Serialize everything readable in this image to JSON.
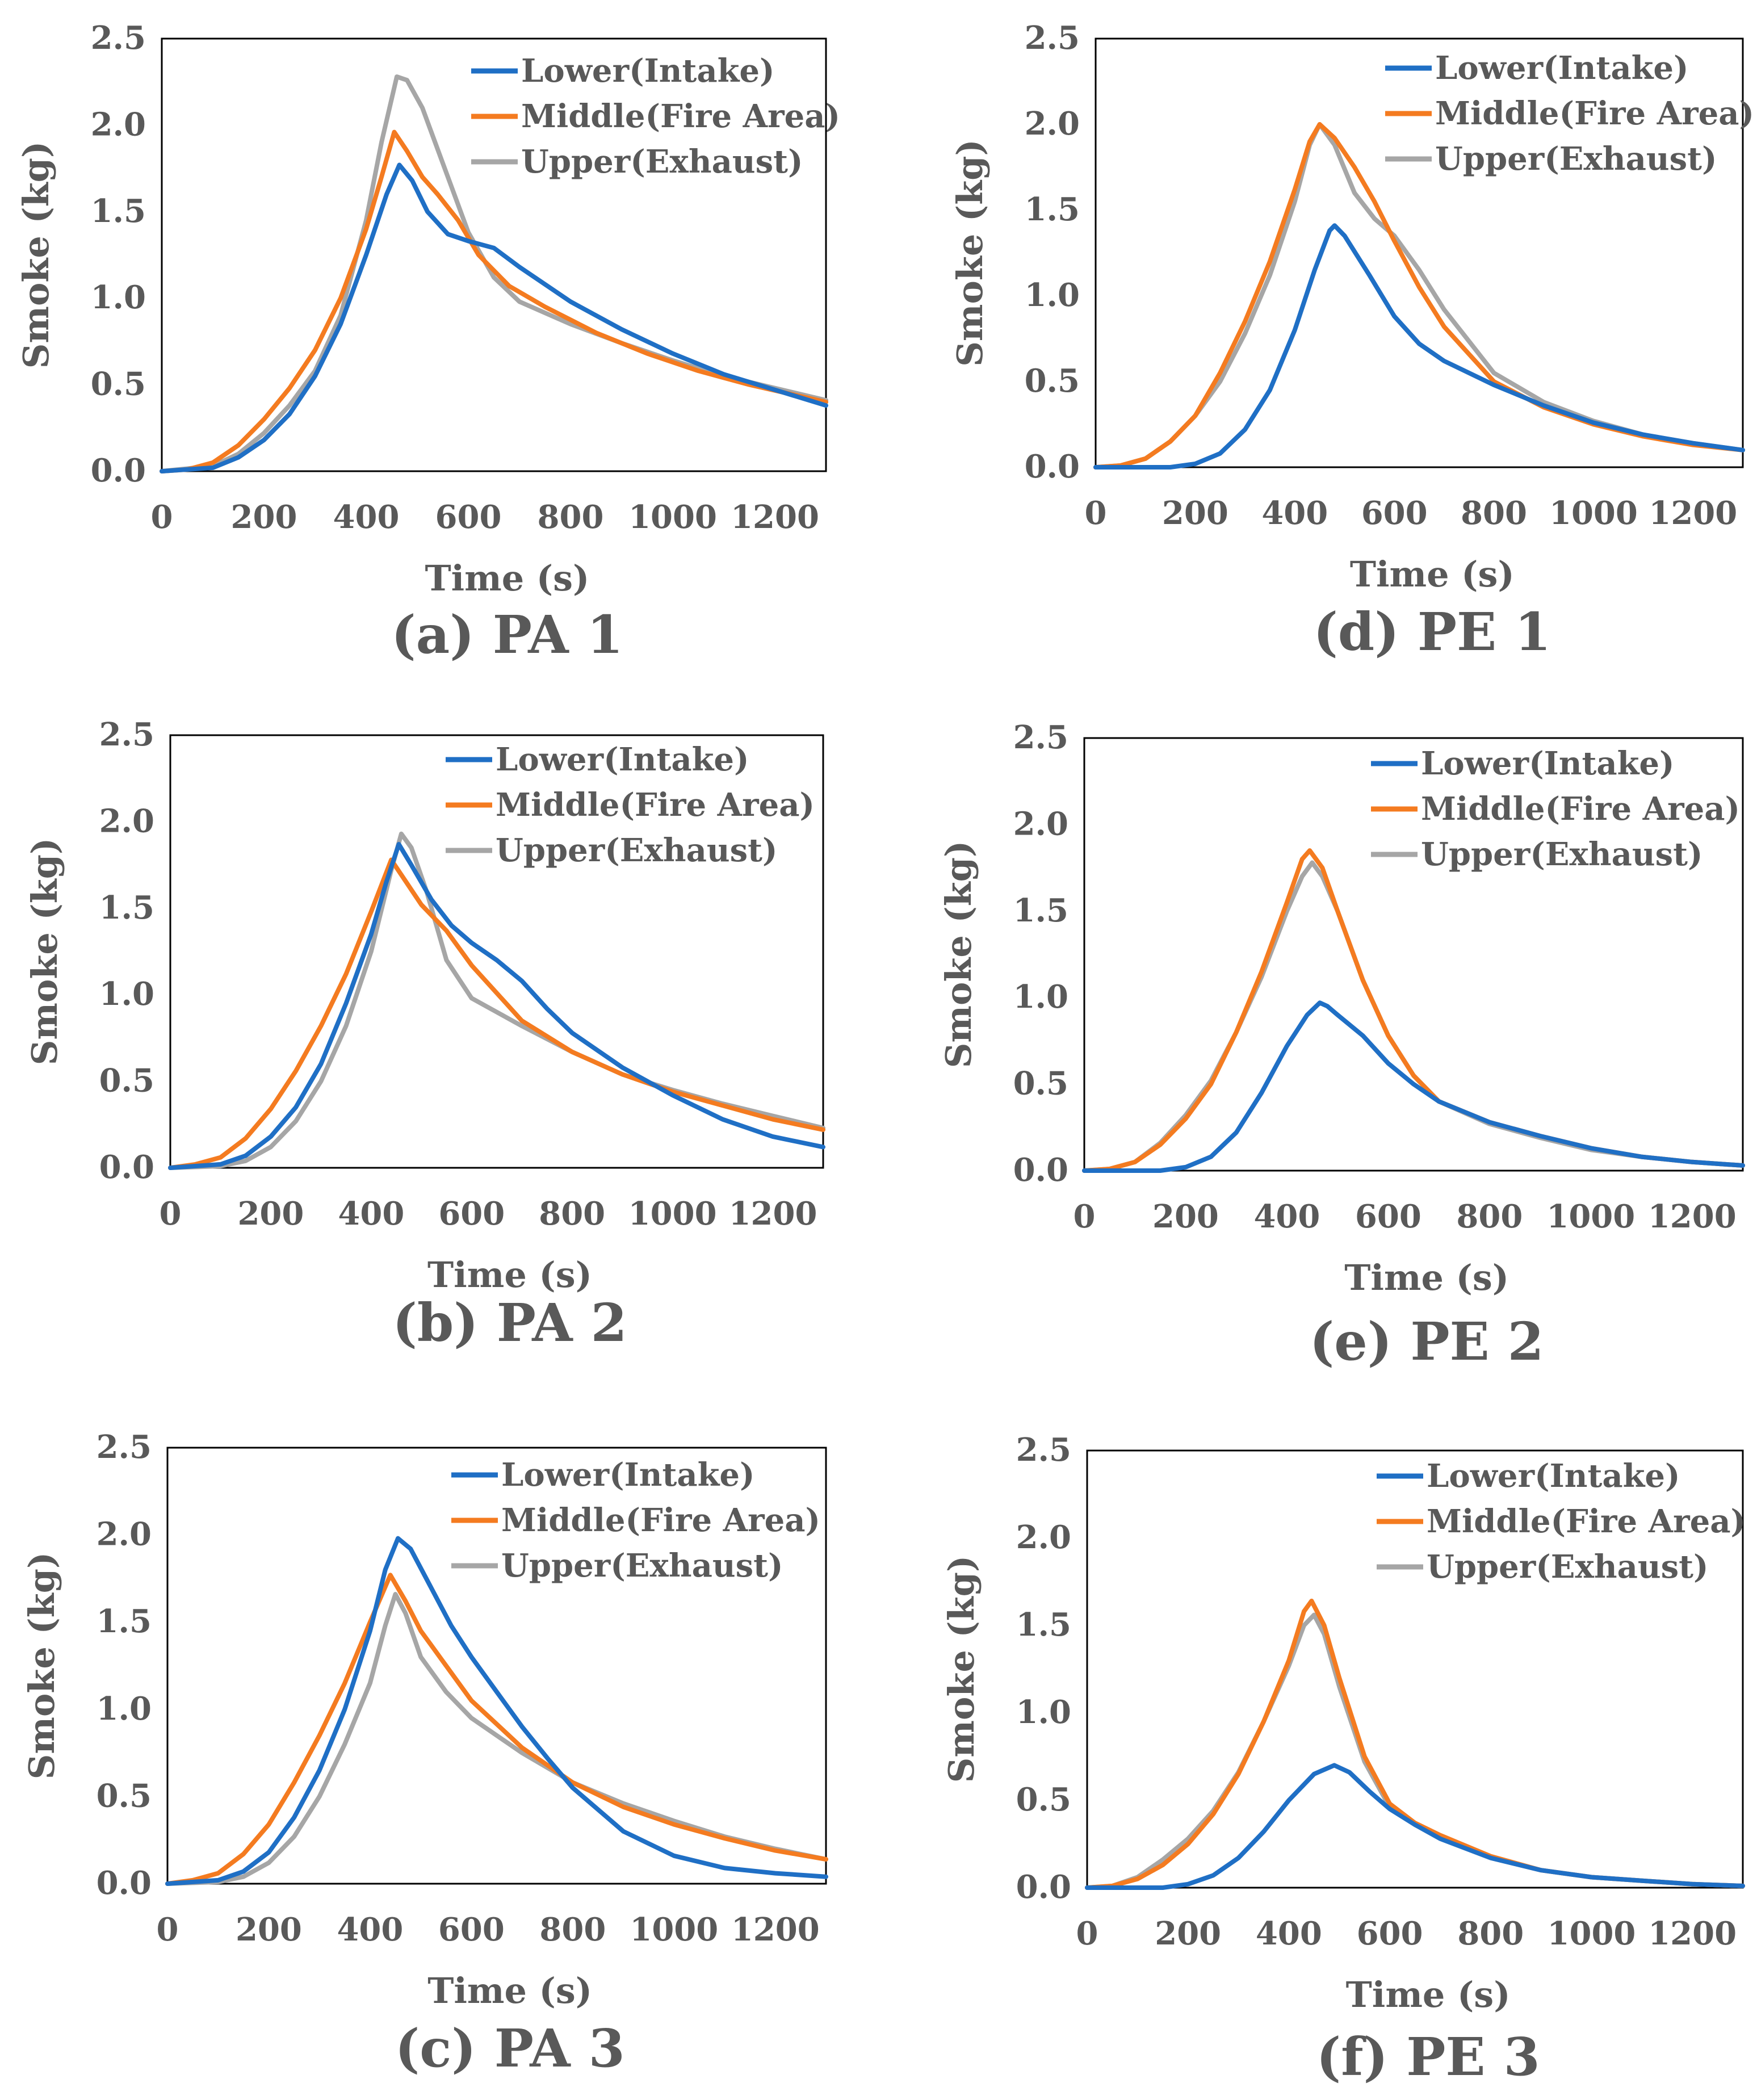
{
  "colors": {
    "lower": "#1F6FC5",
    "middle": "#F47B20",
    "upper": "#A6A6A6"
  },
  "chart_data": [
    {
      "type": "line",
      "caption": "(a) PA 1",
      "xlabel": "Time (s)",
      "ylabel": "Smoke (kg)",
      "xlim": [
        0,
        1300
      ],
      "ylim": [
        0,
        2.5
      ],
      "xticks": [
        "0",
        "200",
        "400",
        "600",
        "800",
        "1000",
        "1200"
      ],
      "yticks": [
        "0.0",
        "0.5",
        "1.0",
        "1.5",
        "2.0",
        "2.5"
      ],
      "legend": "top-right",
      "series": [
        {
          "name": "Lower(Intake)",
          "color_key": "lower",
          "x": [
            0,
            100,
            150,
            200,
            250,
            300,
            350,
            400,
            440,
            465,
            490,
            520,
            560,
            600,
            650,
            700,
            800,
            900,
            1000,
            1100,
            1200,
            1300
          ],
          "y": [
            0,
            0.02,
            0.08,
            0.18,
            0.33,
            0.55,
            0.85,
            1.25,
            1.6,
            1.77,
            1.68,
            1.5,
            1.37,
            1.33,
            1.29,
            1.18,
            0.98,
            0.82,
            0.68,
            0.56,
            0.47,
            0.38
          ]
        },
        {
          "name": "Middle(Fire Area)",
          "color_key": "middle",
          "x": [
            0,
            50,
            100,
            150,
            200,
            250,
            300,
            350,
            400,
            430,
            455,
            480,
            510,
            540,
            580,
            620,
            680,
            750,
            850,
            950,
            1050,
            1150,
            1300
          ],
          "y": [
            0,
            0.01,
            0.05,
            0.15,
            0.3,
            0.48,
            0.7,
            1.0,
            1.4,
            1.7,
            1.96,
            1.85,
            1.7,
            1.6,
            1.45,
            1.25,
            1.07,
            0.95,
            0.8,
            0.68,
            0.58,
            0.5,
            0.4
          ]
        },
        {
          "name": "Upper(Exhaust)",
          "color_key": "upper",
          "x": [
            0,
            100,
            150,
            200,
            250,
            300,
            350,
            400,
            430,
            460,
            480,
            510,
            550,
            600,
            650,
            700,
            800,
            900,
            1000,
            1100,
            1200,
            1300
          ],
          "y": [
            0,
            0.03,
            0.1,
            0.22,
            0.38,
            0.58,
            0.9,
            1.45,
            1.9,
            2.28,
            2.26,
            2.1,
            1.78,
            1.38,
            1.12,
            0.98,
            0.85,
            0.74,
            0.64,
            0.55,
            0.48,
            0.41
          ]
        }
      ]
    },
    {
      "type": "line",
      "caption": "(b) PA 2",
      "xlabel": "Time (s)",
      "ylabel": "Smoke (kg)",
      "xlim": [
        0,
        1300
      ],
      "ylim": [
        0,
        2.5
      ],
      "xticks": [
        "0",
        "200",
        "400",
        "600",
        "800",
        "1000",
        "1200"
      ],
      "yticks": [
        "0.0",
        "0.5",
        "1.0",
        "1.5",
        "2.0",
        "2.5"
      ],
      "legend": "top-right",
      "series": [
        {
          "name": "Lower(Intake)",
          "color_key": "lower",
          "x": [
            0,
            100,
            150,
            200,
            250,
            300,
            350,
            400,
            430,
            455,
            480,
            520,
            560,
            600,
            650,
            700,
            750,
            800,
            900,
            1000,
            1100,
            1200,
            1300
          ],
          "y": [
            0,
            0.02,
            0.07,
            0.18,
            0.35,
            0.6,
            0.95,
            1.35,
            1.65,
            1.87,
            1.75,
            1.55,
            1.4,
            1.3,
            1.2,
            1.08,
            0.92,
            0.78,
            0.58,
            0.42,
            0.28,
            0.18,
            0.12
          ]
        },
        {
          "name": "Middle(Fire Area)",
          "color_key": "middle",
          "x": [
            0,
            50,
            100,
            150,
            200,
            250,
            300,
            350,
            400,
            440,
            470,
            500,
            550,
            600,
            700,
            800,
            900,
            1000,
            1100,
            1200,
            1300
          ],
          "y": [
            0,
            0.02,
            0.06,
            0.17,
            0.34,
            0.56,
            0.82,
            1.12,
            1.48,
            1.78,
            1.65,
            1.52,
            1.37,
            1.17,
            0.85,
            0.67,
            0.54,
            0.44,
            0.36,
            0.28,
            0.22
          ]
        },
        {
          "name": "Upper(Exhaust)",
          "color_key": "upper",
          "x": [
            0,
            100,
            150,
            200,
            250,
            300,
            350,
            400,
            440,
            460,
            480,
            510,
            550,
            600,
            700,
            800,
            900,
            1000,
            1100,
            1200,
            1300
          ],
          "y": [
            0,
            0.01,
            0.04,
            0.12,
            0.27,
            0.5,
            0.82,
            1.25,
            1.72,
            1.93,
            1.85,
            1.6,
            1.2,
            0.98,
            0.82,
            0.67,
            0.54,
            0.45,
            0.37,
            0.3,
            0.23
          ]
        }
      ]
    },
    {
      "type": "line",
      "caption": "(c) PA 3",
      "xlabel": "Time (s)",
      "ylabel": "Smoke (kg)",
      "xlim": [
        0,
        1300
      ],
      "ylim": [
        0,
        2.5
      ],
      "xticks": [
        "0",
        "200",
        "400",
        "600",
        "800",
        "1000",
        "1200"
      ],
      "yticks": [
        "0.0",
        "0.5",
        "1.0",
        "1.5",
        "2.0",
        "2.5"
      ],
      "legend": "top-right",
      "series": [
        {
          "name": "Lower(Intake)",
          "color_key": "lower",
          "x": [
            0,
            100,
            150,
            200,
            250,
            300,
            350,
            400,
            430,
            455,
            480,
            520,
            560,
            600,
            650,
            700,
            750,
            800,
            900,
            1000,
            1100,
            1200,
            1300
          ],
          "y": [
            0,
            0.02,
            0.07,
            0.18,
            0.38,
            0.65,
            1.0,
            1.45,
            1.8,
            1.98,
            1.92,
            1.7,
            1.48,
            1.3,
            1.1,
            0.9,
            0.72,
            0.55,
            0.3,
            0.16,
            0.09,
            0.06,
            0.04
          ]
        },
        {
          "name": "Middle(Fire Area)",
          "color_key": "middle",
          "x": [
            0,
            50,
            100,
            150,
            200,
            250,
            300,
            350,
            400,
            440,
            470,
            500,
            550,
            600,
            700,
            800,
            900,
            1000,
            1100,
            1200,
            1300
          ],
          "y": [
            0,
            0.02,
            0.06,
            0.17,
            0.34,
            0.58,
            0.85,
            1.15,
            1.5,
            1.77,
            1.62,
            1.45,
            1.25,
            1.05,
            0.78,
            0.58,
            0.44,
            0.34,
            0.26,
            0.19,
            0.14
          ]
        },
        {
          "name": "Upper(Exhaust)",
          "color_key": "upper",
          "x": [
            0,
            100,
            150,
            200,
            250,
            300,
            350,
            400,
            430,
            450,
            470,
            500,
            550,
            600,
            700,
            800,
            900,
            1000,
            1100,
            1200,
            1300
          ],
          "y": [
            0,
            0.01,
            0.04,
            0.12,
            0.27,
            0.5,
            0.8,
            1.15,
            1.48,
            1.66,
            1.55,
            1.3,
            1.1,
            0.95,
            0.75,
            0.58,
            0.46,
            0.36,
            0.27,
            0.2,
            0.14
          ]
        }
      ]
    },
    {
      "type": "line",
      "caption": "(d) PE 1",
      "xlabel": "Time (s)",
      "ylabel": "Smoke (kg)",
      "xlim": [
        0,
        1300
      ],
      "ylim": [
        0,
        2.5
      ],
      "xticks": [
        "0",
        "200",
        "400",
        "600",
        "800",
        "1000",
        "1200"
      ],
      "yticks": [
        "0.0",
        "0.5",
        "1.0",
        "1.5",
        "2.0",
        "2.5"
      ],
      "legend": "top-right",
      "series": [
        {
          "name": "Lower(Intake)",
          "color_key": "lower",
          "x": [
            0,
            150,
            200,
            250,
            300,
            350,
            400,
            440,
            470,
            480,
            500,
            550,
            600,
            650,
            700,
            800,
            900,
            1000,
            1100,
            1200,
            1300
          ],
          "y": [
            0,
            0,
            0.02,
            0.08,
            0.22,
            0.45,
            0.8,
            1.15,
            1.38,
            1.41,
            1.35,
            1.12,
            0.88,
            0.72,
            0.62,
            0.48,
            0.36,
            0.26,
            0.19,
            0.14,
            0.1
          ]
        },
        {
          "name": "Middle(Fire Area)",
          "color_key": "middle",
          "x": [
            0,
            50,
            100,
            150,
            200,
            250,
            300,
            350,
            400,
            430,
            450,
            480,
            520,
            560,
            600,
            650,
            700,
            800,
            900,
            1000,
            1100,
            1200,
            1300
          ],
          "y": [
            0,
            0.01,
            0.05,
            0.15,
            0.3,
            0.55,
            0.85,
            1.2,
            1.62,
            1.9,
            2.0,
            1.92,
            1.75,
            1.55,
            1.32,
            1.05,
            0.82,
            0.5,
            0.35,
            0.25,
            0.18,
            0.13,
            0.1
          ]
        },
        {
          "name": "Upper(Exhaust)",
          "color_key": "upper",
          "x": [
            0,
            50,
            100,
            150,
            200,
            250,
            300,
            350,
            400,
            430,
            450,
            480,
            520,
            560,
            600,
            650,
            700,
            800,
            900,
            1000,
            1100,
            1200,
            1300
          ],
          "y": [
            0,
            0.01,
            0.05,
            0.15,
            0.3,
            0.5,
            0.78,
            1.12,
            1.55,
            1.88,
            2.0,
            1.88,
            1.6,
            1.45,
            1.35,
            1.15,
            0.92,
            0.55,
            0.38,
            0.27,
            0.19,
            0.14,
            0.1
          ]
        }
      ]
    },
    {
      "type": "line",
      "caption": "(e) PE 2",
      "xlabel": "Time (s)",
      "ylabel": "Smoke (kg)",
      "xlim": [
        0,
        1300
      ],
      "ylim": [
        0,
        2.5
      ],
      "xticks": [
        "0",
        "200",
        "400",
        "600",
        "800",
        "1000",
        "1200"
      ],
      "yticks": [
        "0.0",
        "0.5",
        "1.0",
        "1.5",
        "2.0",
        "2.5"
      ],
      "legend": "top-right",
      "series": [
        {
          "name": "Lower(Intake)",
          "color_key": "lower",
          "x": [
            0,
            150,
            200,
            250,
            300,
            350,
            400,
            440,
            465,
            480,
            500,
            550,
            600,
            650,
            700,
            800,
            900,
            1000,
            1100,
            1200,
            1300
          ],
          "y": [
            0,
            0,
            0.02,
            0.08,
            0.22,
            0.45,
            0.72,
            0.9,
            0.97,
            0.95,
            0.9,
            0.78,
            0.62,
            0.5,
            0.4,
            0.28,
            0.2,
            0.13,
            0.08,
            0.05,
            0.03
          ]
        },
        {
          "name": "Middle(Fire Area)",
          "color_key": "middle",
          "x": [
            0,
            50,
            100,
            150,
            200,
            250,
            300,
            350,
            400,
            430,
            445,
            470,
            500,
            550,
            600,
            650,
            700,
            800,
            900,
            1000,
            1100,
            1200,
            1300
          ],
          "y": [
            0,
            0.01,
            0.05,
            0.15,
            0.3,
            0.5,
            0.8,
            1.15,
            1.55,
            1.8,
            1.85,
            1.75,
            1.5,
            1.1,
            0.78,
            0.55,
            0.4,
            0.28,
            0.2,
            0.13,
            0.08,
            0.05,
            0.03
          ]
        },
        {
          "name": "Upper(Exhaust)",
          "color_key": "upper",
          "x": [
            0,
            50,
            100,
            150,
            200,
            250,
            300,
            350,
            400,
            430,
            450,
            470,
            500,
            550,
            600,
            650,
            700,
            800,
            900,
            1000,
            1100,
            1200,
            1300
          ],
          "y": [
            0,
            0.01,
            0.05,
            0.16,
            0.32,
            0.52,
            0.8,
            1.12,
            1.5,
            1.7,
            1.78,
            1.7,
            1.5,
            1.1,
            0.78,
            0.55,
            0.4,
            0.27,
            0.19,
            0.12,
            0.08,
            0.05,
            0.03
          ]
        }
      ]
    },
    {
      "type": "line",
      "caption": "(f) PE 3",
      "xlabel": "Time (s)",
      "ylabel": "Smoke (kg)",
      "xlim": [
        0,
        1300
      ],
      "ylim": [
        0,
        2.5
      ],
      "xticks": [
        "0",
        "200",
        "400",
        "600",
        "800",
        "1000",
        "1200"
      ],
      "yticks": [
        "0.0",
        "0.5",
        "1.0",
        "1.5",
        "2.0",
        "2.5"
      ],
      "legend": "top-right",
      "series": [
        {
          "name": "Lower(Intake)",
          "color_key": "lower",
          "x": [
            0,
            150,
            200,
            250,
            300,
            350,
            400,
            450,
            490,
            520,
            560,
            600,
            650,
            700,
            800,
            900,
            1000,
            1100,
            1200,
            1300
          ],
          "y": [
            0,
            0,
            0.02,
            0.07,
            0.17,
            0.32,
            0.5,
            0.65,
            0.7,
            0.66,
            0.55,
            0.45,
            0.36,
            0.28,
            0.17,
            0.1,
            0.06,
            0.04,
            0.02,
            0.01
          ]
        },
        {
          "name": "Middle(Fire Area)",
          "color_key": "middle",
          "x": [
            0,
            50,
            100,
            150,
            200,
            250,
            300,
            350,
            400,
            430,
            445,
            470,
            500,
            550,
            600,
            650,
            700,
            800,
            900,
            1000,
            1100,
            1200,
            1300
          ],
          "y": [
            0,
            0.01,
            0.05,
            0.13,
            0.25,
            0.42,
            0.65,
            0.95,
            1.3,
            1.58,
            1.64,
            1.5,
            1.2,
            0.75,
            0.48,
            0.37,
            0.3,
            0.18,
            0.1,
            0.06,
            0.04,
            0.02,
            0.01
          ]
        },
        {
          "name": "Upper(Exhaust)",
          "color_key": "upper",
          "x": [
            0,
            50,
            100,
            150,
            200,
            250,
            300,
            350,
            400,
            430,
            450,
            470,
            500,
            550,
            600,
            650,
            700,
            800,
            900,
            1000,
            1100,
            1200,
            1300
          ],
          "y": [
            0,
            0.01,
            0.06,
            0.16,
            0.28,
            0.44,
            0.66,
            0.95,
            1.27,
            1.5,
            1.56,
            1.45,
            1.15,
            0.72,
            0.46,
            0.36,
            0.29,
            0.17,
            0.1,
            0.06,
            0.04,
            0.02,
            0.01
          ]
        }
      ]
    }
  ]
}
